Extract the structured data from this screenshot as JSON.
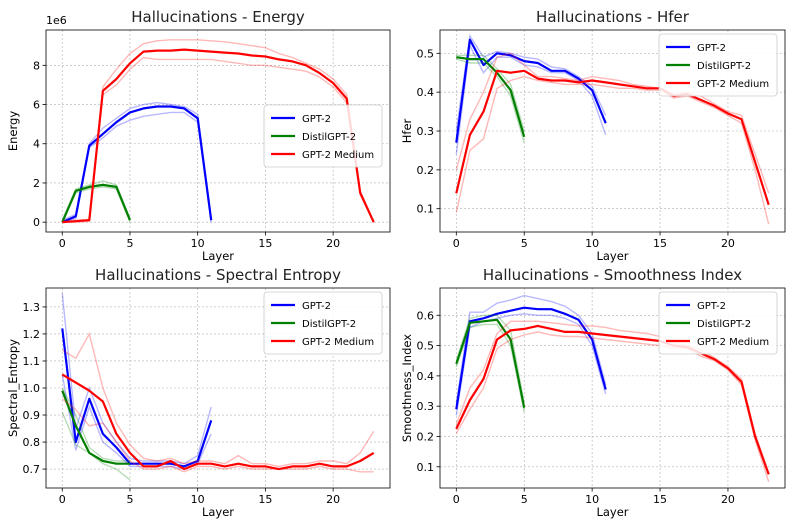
{
  "chart_data": [
    {
      "type": "line",
      "title": "Hallucinations - Energy",
      "xlabel": "Layer",
      "ylabel": "Energy",
      "offset_label": "1e6",
      "xlim": [
        -1.2,
        24.2
      ],
      "ylim": [
        -0.5,
        9.8
      ],
      "xticks": [
        0,
        5,
        10,
        15,
        20
      ],
      "yticks": [
        0,
        2,
        4,
        6,
        8
      ],
      "legend_position": "center-right",
      "series": [
        {
          "name": "GPT-2",
          "color": "#0000ff",
          "x": [
            0,
            1,
            2,
            3,
            4,
            5,
            6,
            7,
            8,
            9,
            10,
            11
          ],
          "y": [
            0.0,
            0.3,
            3.9,
            4.5,
            5.1,
            5.6,
            5.8,
            5.9,
            5.9,
            5.8,
            5.3,
            0.1
          ],
          "band_hi": [
            0.1,
            0.4,
            4.0,
            4.8,
            5.3,
            5.8,
            6.0,
            6.1,
            6.0,
            5.9,
            5.5,
            0.2
          ],
          "band_lo": [
            0.0,
            0.2,
            3.8,
            4.3,
            4.9,
            5.2,
            5.4,
            5.5,
            5.6,
            5.6,
            5.1,
            0.0
          ]
        },
        {
          "name": "DistilGPT-2",
          "color": "#008000",
          "x": [
            0,
            1,
            2,
            3,
            4,
            5
          ],
          "y": [
            0.0,
            1.6,
            1.8,
            1.9,
            1.8,
            0.1
          ],
          "band_hi": [
            0.1,
            1.7,
            1.9,
            2.1,
            1.9,
            0.2
          ],
          "band_lo": [
            0.0,
            1.5,
            1.7,
            1.8,
            1.7,
            0.0
          ]
        },
        {
          "name": "GPT-2 Medium",
          "color": "#ff0000",
          "x": [
            0,
            1,
            2,
            3,
            4,
            5,
            6,
            7,
            8,
            9,
            10,
            11,
            12,
            13,
            14,
            15,
            16,
            17,
            18,
            19,
            20,
            21,
            22,
            23
          ],
          "y": [
            0.0,
            0.05,
            0.1,
            6.7,
            7.3,
            8.1,
            8.7,
            8.75,
            8.75,
            8.8,
            8.75,
            8.7,
            8.65,
            8.6,
            8.5,
            8.45,
            8.3,
            8.2,
            8.0,
            7.6,
            7.1,
            6.3,
            1.5,
            0.0
          ],
          "band_hi": [
            0.05,
            0.1,
            0.15,
            6.9,
            7.8,
            8.6,
            9.1,
            9.25,
            9.3,
            9.3,
            9.3,
            9.25,
            9.2,
            9.1,
            9.0,
            8.9,
            8.6,
            8.4,
            8.1,
            7.8,
            7.3,
            6.5,
            1.6,
            0.05
          ],
          "band_lo": [
            0.0,
            0.0,
            0.05,
            6.5,
            7.0,
            7.8,
            8.4,
            8.3,
            8.3,
            8.3,
            8.3,
            8.3,
            8.2,
            8.1,
            8.0,
            8.0,
            7.9,
            7.8,
            7.7,
            7.4,
            6.9,
            6.1,
            1.4,
            0.0
          ]
        }
      ]
    },
    {
      "type": "line",
      "title": "Hallucinations - Hfer",
      "xlabel": "Layer",
      "ylabel": "Hfer",
      "xlim": [
        -1.2,
        24.2
      ],
      "ylim": [
        0.04,
        0.56
      ],
      "xticks": [
        0,
        5,
        10,
        15,
        20
      ],
      "yticks": [
        0.1,
        0.2,
        0.3,
        0.4,
        0.5
      ],
      "legend_position": "top-right",
      "series": [
        {
          "name": "GPT-2",
          "color": "#0000ff",
          "x": [
            0,
            1,
            2,
            3,
            4,
            5,
            6,
            7,
            8,
            9,
            10,
            11
          ],
          "y": [
            0.27,
            0.535,
            0.47,
            0.5,
            0.495,
            0.48,
            0.475,
            0.455,
            0.455,
            0.435,
            0.405,
            0.32
          ],
          "band_hi": [
            0.3,
            0.545,
            0.49,
            0.505,
            0.5,
            0.49,
            0.485,
            0.465,
            0.46,
            0.44,
            0.415,
            0.34
          ],
          "band_lo": [
            0.24,
            0.52,
            0.45,
            0.49,
            0.49,
            0.47,
            0.465,
            0.45,
            0.45,
            0.43,
            0.39,
            0.29
          ]
        },
        {
          "name": "DistilGPT-2",
          "color": "#008000",
          "x": [
            0,
            1,
            2,
            3,
            4,
            5
          ],
          "y": [
            0.49,
            0.485,
            0.485,
            0.45,
            0.405,
            0.285
          ],
          "band_hi": [
            0.495,
            0.495,
            0.495,
            0.46,
            0.42,
            0.3
          ],
          "band_lo": [
            0.485,
            0.475,
            0.475,
            0.44,
            0.39,
            0.27
          ]
        },
        {
          "name": "GPT-2 Medium",
          "color": "#ff0000",
          "x": [
            0,
            1,
            2,
            3,
            4,
            5,
            6,
            7,
            8,
            9,
            10,
            11,
            12,
            13,
            14,
            15,
            16,
            17,
            18,
            19,
            20,
            21,
            22,
            23
          ],
          "y": [
            0.14,
            0.29,
            0.35,
            0.455,
            0.45,
            0.455,
            0.435,
            0.43,
            0.43,
            0.425,
            0.43,
            0.425,
            0.42,
            0.415,
            0.41,
            0.41,
            0.39,
            0.395,
            0.38,
            0.365,
            0.345,
            0.33,
            0.22,
            0.11
          ],
          "band_hi": [
            0.2,
            0.33,
            0.4,
            0.49,
            0.5,
            0.47,
            0.44,
            0.44,
            0.435,
            0.43,
            0.44,
            0.435,
            0.43,
            0.42,
            0.415,
            0.41,
            0.395,
            0.4,
            0.39,
            0.37,
            0.35,
            0.34,
            0.24,
            0.14
          ],
          "band_lo": [
            0.09,
            0.25,
            0.28,
            0.41,
            0.43,
            0.44,
            0.43,
            0.425,
            0.42,
            0.42,
            0.42,
            0.415,
            0.41,
            0.41,
            0.405,
            0.405,
            0.385,
            0.39,
            0.375,
            0.36,
            0.34,
            0.32,
            0.2,
            0.06
          ]
        }
      ]
    },
    {
      "type": "line",
      "title": "Hallucinations - Spectral Entropy",
      "xlabel": "Layer",
      "ylabel": "Spectral_Entropy",
      "xlim": [
        -1.2,
        24.2
      ],
      "ylim": [
        0.63,
        1.37
      ],
      "xticks": [
        0,
        5,
        10,
        15,
        20
      ],
      "yticks": [
        0.7,
        0.8,
        0.9,
        1.0,
        1.1,
        1.2,
        1.3
      ],
      "legend_position": "top-right",
      "series": [
        {
          "name": "GPT-2",
          "color": "#0000ff",
          "x": [
            0,
            1,
            2,
            3,
            4,
            5,
            6,
            7,
            8,
            9,
            10,
            11
          ],
          "y": [
            1.22,
            0.8,
            0.96,
            0.83,
            0.78,
            0.72,
            0.72,
            0.72,
            0.72,
            0.71,
            0.73,
            0.88
          ],
          "band_hi": [
            1.35,
            0.85,
            1.0,
            0.87,
            0.8,
            0.74,
            0.73,
            0.73,
            0.73,
            0.72,
            0.75,
            0.93
          ],
          "band_lo": [
            1.05,
            0.77,
            0.93,
            0.8,
            0.76,
            0.71,
            0.71,
            0.71,
            0.71,
            0.7,
            0.72,
            0.83
          ]
        },
        {
          "name": "DistilGPT-2",
          "color": "#008000",
          "x": [
            0,
            1,
            2,
            3,
            4,
            5
          ],
          "y": [
            0.99,
            0.86,
            0.76,
            0.73,
            0.72,
            0.72
          ],
          "band_hi": [
            1.0,
            0.9,
            0.78,
            0.74,
            0.73,
            0.73
          ],
          "band_lo": [
            0.91,
            0.79,
            0.76,
            0.72,
            0.7,
            0.66
          ]
        },
        {
          "name": "GPT-2 Medium",
          "color": "#ff0000",
          "x": [
            0,
            1,
            2,
            3,
            4,
            5,
            6,
            7,
            8,
            9,
            10,
            11,
            12,
            13,
            14,
            15,
            16,
            17,
            18,
            19,
            20,
            21,
            22,
            23
          ],
          "y": [
            1.05,
            1.02,
            0.99,
            0.95,
            0.83,
            0.76,
            0.71,
            0.71,
            0.73,
            0.7,
            0.72,
            0.72,
            0.71,
            0.72,
            0.71,
            0.71,
            0.7,
            0.71,
            0.71,
            0.72,
            0.71,
            0.71,
            0.73,
            0.76
          ],
          "band_hi": [
            1.14,
            1.11,
            1.2,
            1.0,
            0.87,
            0.79,
            0.74,
            0.73,
            0.74,
            0.72,
            0.73,
            0.73,
            0.72,
            0.75,
            0.72,
            0.72,
            0.71,
            0.72,
            0.72,
            0.73,
            0.73,
            0.72,
            0.76,
            0.84
          ],
          "band_lo": [
            0.96,
            0.92,
            0.86,
            0.87,
            0.8,
            0.73,
            0.7,
            0.7,
            0.71,
            0.69,
            0.71,
            0.71,
            0.7,
            0.71,
            0.7,
            0.7,
            0.7,
            0.7,
            0.7,
            0.71,
            0.7,
            0.7,
            0.69,
            0.69
          ]
        }
      ]
    },
    {
      "type": "line",
      "title": "Hallucinations - Smoothness Index",
      "xlabel": "Layer",
      "ylabel": "Smoothness_Index",
      "xlim": [
        -1.2,
        24.2
      ],
      "ylim": [
        0.03,
        0.69
      ],
      "xticks": [
        0,
        5,
        10,
        15,
        20
      ],
      "yticks": [
        0.1,
        0.2,
        0.3,
        0.4,
        0.5,
        0.6
      ],
      "legend_position": "top-right",
      "series": [
        {
          "name": "GPT-2",
          "color": "#0000ff",
          "x": [
            0,
            1,
            2,
            3,
            4,
            5,
            6,
            7,
            8,
            9,
            10,
            11
          ],
          "y": [
            0.29,
            0.58,
            0.59,
            0.605,
            0.615,
            0.625,
            0.62,
            0.62,
            0.605,
            0.585,
            0.52,
            0.355
          ],
          "band_hi": [
            0.31,
            0.61,
            0.61,
            0.64,
            0.65,
            0.665,
            0.655,
            0.645,
            0.63,
            0.6,
            0.54,
            0.37
          ],
          "band_lo": [
            0.27,
            0.56,
            0.58,
            0.59,
            0.6,
            0.605,
            0.6,
            0.6,
            0.59,
            0.57,
            0.5,
            0.34
          ]
        },
        {
          "name": "DistilGPT-2",
          "color": "#008000",
          "x": [
            0,
            1,
            2,
            3,
            4,
            5
          ],
          "y": [
            0.44,
            0.575,
            0.58,
            0.585,
            0.52,
            0.295
          ],
          "band_hi": [
            0.45,
            0.59,
            0.6,
            0.6,
            0.55,
            0.31
          ],
          "band_lo": [
            0.43,
            0.56,
            0.57,
            0.57,
            0.5,
            0.28
          ]
        },
        {
          "name": "GPT-2 Medium",
          "color": "#ff0000",
          "x": [
            0,
            1,
            2,
            3,
            4,
            5,
            6,
            7,
            8,
            9,
            10,
            11,
            12,
            13,
            14,
            15,
            16,
            17,
            18,
            19,
            20,
            21,
            22,
            23
          ],
          "y": [
            0.225,
            0.32,
            0.39,
            0.52,
            0.55,
            0.555,
            0.565,
            0.555,
            0.545,
            0.545,
            0.54,
            0.535,
            0.53,
            0.525,
            0.52,
            0.515,
            0.5,
            0.495,
            0.475,
            0.455,
            0.425,
            0.38,
            0.2,
            0.075
          ],
          "band_hi": [
            0.24,
            0.36,
            0.42,
            0.54,
            0.58,
            0.58,
            0.58,
            0.575,
            0.57,
            0.565,
            0.565,
            0.56,
            0.55,
            0.545,
            0.54,
            0.53,
            0.51,
            0.5,
            0.485,
            0.46,
            0.43,
            0.39,
            0.21,
            0.08
          ],
          "band_lo": [
            0.21,
            0.29,
            0.36,
            0.49,
            0.52,
            0.535,
            0.545,
            0.535,
            0.53,
            0.53,
            0.525,
            0.52,
            0.515,
            0.51,
            0.505,
            0.5,
            0.49,
            0.49,
            0.465,
            0.45,
            0.42,
            0.37,
            0.19,
            0.05
          ]
        }
      ]
    }
  ]
}
